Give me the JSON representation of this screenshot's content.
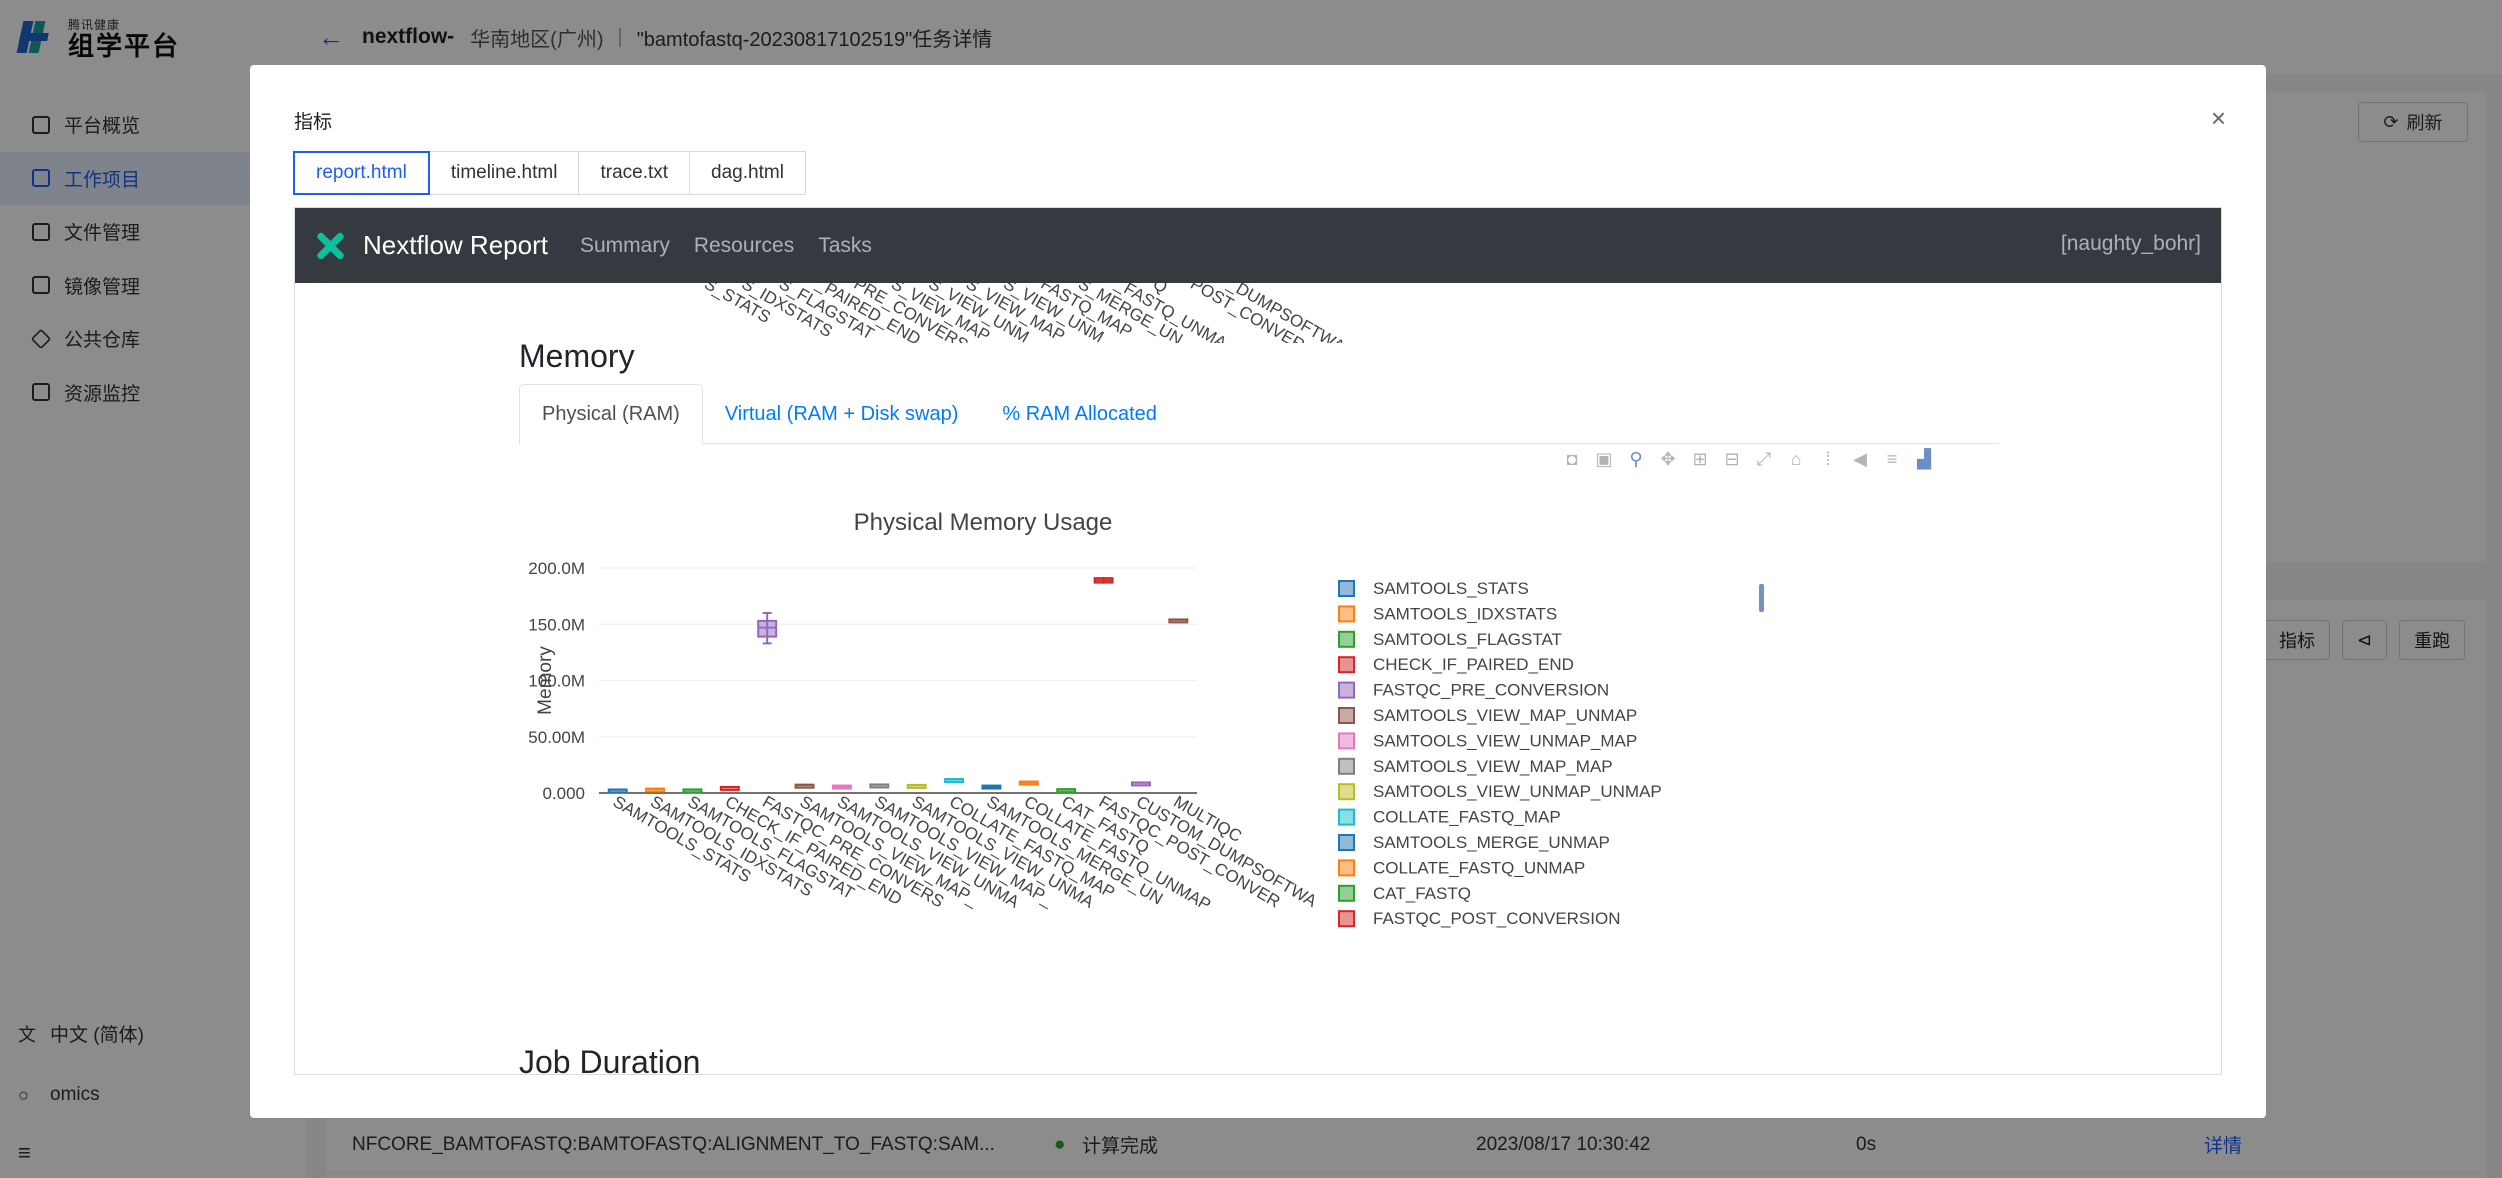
{
  "sidebar": {
    "logo_small": "腾讯健康",
    "logo_big": "组学平台",
    "items": [
      {
        "label": "平台概览",
        "icon": "grid-icon",
        "active": false
      },
      {
        "label": "工作项目",
        "icon": "layers-icon",
        "active": true
      },
      {
        "label": "文件管理",
        "icon": "folder-icon",
        "active": false
      },
      {
        "label": "镜像管理",
        "icon": "image-icon",
        "active": false
      },
      {
        "label": "公共仓库",
        "icon": "cube-icon",
        "active": false
      },
      {
        "label": "资源监控",
        "icon": "chart-icon",
        "active": false
      }
    ],
    "language": "中文 (简体)",
    "user": "omics"
  },
  "topbar": {
    "workflow_name": "nextflow-",
    "region": "华南地区(广州)",
    "separator": "|",
    "task": "\"bamtofastq-20230817102519\"任务详情"
  },
  "background": {
    "refresh_label": "刷新",
    "btn_metrics": "指标",
    "btn_rerun": "重跑",
    "row": {
      "name": "NFCORE_BAMTOFASTQ:BAMTOFASTQ:ALIGNMENT_TO_FASTQ:SAM...",
      "status": "计算完成",
      "time": "2023/08/17 10:30:42",
      "duration": "0s",
      "action": "详情"
    }
  },
  "modal": {
    "title": "指标",
    "close": "×",
    "tabs": [
      "report.html",
      "timeline.html",
      "trace.txt",
      "dag.html"
    ],
    "active_tab": 0
  },
  "report": {
    "brand": "Nextflow Report",
    "nav": [
      "Summary",
      "Resources",
      "Tasks"
    ],
    "run_name": "[naughty_bohr]",
    "section_memory": "Memory",
    "section_next": "Job Duration",
    "subtabs": [
      "Physical (RAM)",
      "Virtual (RAM + Disk swap)",
      "% RAM Allocated"
    ],
    "active_subtab": 0,
    "modebar": [
      "camera-icon",
      "save-icon",
      "zoom-icon",
      "pan-icon",
      "zoom-in-icon",
      "zoom-out-icon",
      "autoscale-icon",
      "reset-icon",
      "spike-icon",
      "hover-closest-icon",
      "hover-compare-icon",
      "plotly-logo-icon"
    ]
  },
  "chart_data": {
    "type": "box",
    "title": "Physical Memory Usage",
    "ylabel": "Memory",
    "xlabel": "",
    "ylim": [
      0,
      200000000
    ],
    "yticks": [
      "0.000",
      "50.00M",
      "100.0M",
      "150.0M",
      "200.0M"
    ],
    "ytick_values": [
      0,
      50000000,
      100000000,
      150000000,
      200000000
    ],
    "legend_position": "right",
    "grid": true,
    "categories": [
      "SAMTOOLS_STATS",
      "SAMTOOLS_IDXSTATS",
      "SAMTOOLS_FLAGSTAT",
      "CHECK_IF_PAIRED_END",
      "FASTQC_PRE_CONVERSION",
      "SAMTOOLS_VIEW_MAP_UNMAP",
      "SAMTOOLS_VIEW_UNMAP_MAP",
      "SAMTOOLS_VIEW_MAP_MAP",
      "SAMTOOLS_VIEW_UNMAP_UNMAP",
      "COLLATE_FASTQ_MAP",
      "SAMTOOLS_MERGE_UNMAP",
      "COLLATE_FASTQ_UNMAP",
      "CAT_FASTQ",
      "FASTQC_POST_CONVERSION",
      "CUSTOM_DUMPSOFTWAREVERSIONS",
      "MULTIQC"
    ],
    "tick_labels": [
      "SAMTOOLS_STATS",
      "SAMTOOLS_IDXSTATS",
      "SAMTOOLS_FLAGSTAT",
      "CHECK_IF_PAIRED_END",
      "FASTQC_PRE_CONVERS",
      "SAMTOOLS_VIEW_MAP_",
      "SAMTOOLS_VIEW_UNMA",
      "SAMTOOLS_VIEW_MAP_",
      "SAMTOOLS_VIEW_UNMA",
      "COLLATE_FASTQ_MAP",
      "SAMTOOLS_MERGE_UN",
      "COLLATE_FASTQ_UNMAP",
      "CAT_FASTQ",
      "FASTQC_POST_CONVER",
      "CUSTOM_DUMPSOFTWA",
      "MULTIQC"
    ],
    "colors": [
      "#1f77b4",
      "#ff7f0e",
      "#2ca02c",
      "#d62728",
      "#9467bd",
      "#8c564b",
      "#e377c2",
      "#7f7f7f",
      "#bcbd22",
      "#17becf",
      "#1f77b4",
      "#ff7f0e",
      "#2ca02c",
      "#d62728",
      "#9467bd",
      "#8c564b"
    ],
    "series": [
      {
        "name": "SAMTOOLS_STATS",
        "min": 2800000,
        "q1": 2900000,
        "median": 3000000,
        "q3": 3100000,
        "max": 3200000
      },
      {
        "name": "SAMTOOLS_IDXSTATS",
        "min": 3300000,
        "q1": 3500000,
        "median": 3700000,
        "q3": 3900000,
        "max": 4100000
      },
      {
        "name": "SAMTOOLS_FLAGSTAT",
        "min": 2600000,
        "q1": 2800000,
        "median": 3000000,
        "q3": 3200000,
        "max": 3400000
      },
      {
        "name": "CHECK_IF_PAIRED_END",
        "min": 4800000,
        "q1": 5000000,
        "median": 5200000,
        "q3": 5400000,
        "max": 5600000
      },
      {
        "name": "FASTQC_PRE_CONVERSION",
        "min": 133000000,
        "q1": 139000000,
        "median": 147000000,
        "q3": 153000000,
        "max": 160000000
      },
      {
        "name": "SAMTOOLS_VIEW_MAP_UNMAP",
        "min": 6800000,
        "q1": 7000000,
        "median": 7200000,
        "q3": 7400000,
        "max": 7600000
      },
      {
        "name": "SAMTOOLS_VIEW_UNMAP_MAP",
        "min": 4000000,
        "q1": 4600000,
        "median": 5600000,
        "q3": 6600000,
        "max": 7200000
      },
      {
        "name": "SAMTOOLS_VIEW_MAP_MAP",
        "min": 7000000,
        "q1": 7200000,
        "median": 7400000,
        "q3": 7600000,
        "max": 7800000
      },
      {
        "name": "SAMTOOLS_VIEW_UNMAP_UNMAP",
        "min": 6600000,
        "q1": 6800000,
        "median": 7000000,
        "q3": 7200000,
        "max": 7400000
      },
      {
        "name": "COLLATE_FASTQ_MAP",
        "min": 11800000,
        "q1": 12000000,
        "median": 12200000,
        "q3": 12400000,
        "max": 12600000
      },
      {
        "name": "SAMTOOLS_MERGE_UNMAP",
        "min": 3800000,
        "q1": 4400000,
        "median": 5400000,
        "q3": 6600000,
        "max": 7200000
      },
      {
        "name": "COLLATE_FASTQ_UNMAP",
        "min": 8400000,
        "q1": 8900000,
        "median": 9500000,
        "q3": 10200000,
        "max": 10600000
      },
      {
        "name": "CAT_FASTQ",
        "min": 2800000,
        "q1": 3000000,
        "median": 3200000,
        "q3": 3400000,
        "max": 3600000
      },
      {
        "name": "FASTQC_POST_CONVERSION",
        "min": 186000000,
        "q1": 187000000,
        "median": 189000000,
        "q3": 191000000,
        "max": 192000000
      },
      {
        "name": "CUSTOM_DUMPSOFTWAREVERSIONS",
        "min": 8800000,
        "q1": 9000000,
        "median": 9200000,
        "q3": 9400000,
        "max": 9600000
      },
      {
        "name": "MULTIQC",
        "min": 153500000,
        "q1": 153700000,
        "median": 154000000,
        "q3": 154300000,
        "max": 154500000
      }
    ],
    "legend_entries": [
      "SAMTOOLS_STATS",
      "SAMTOOLS_IDXSTATS",
      "SAMTOOLS_FLAGSTAT",
      "CHECK_IF_PAIRED_END",
      "FASTQC_PRE_CONVERSION",
      "SAMTOOLS_VIEW_MAP_UNMAP",
      "SAMTOOLS_VIEW_UNMAP_MAP",
      "SAMTOOLS_VIEW_MAP_MAP",
      "SAMTOOLS_VIEW_UNMAP_UNMAP",
      "COLLATE_FASTQ_MAP",
      "SAMTOOLS_MERGE_UNMAP",
      "COLLATE_FASTQ_UNMAP",
      "CAT_FASTQ",
      "FASTQC_POST_CONVERSION"
    ]
  },
  "prev_chart_tick_labels": [
    "S_STATS",
    "S_IDXSTATS",
    "S_FLAGSTAT",
    "_PAIRED_END",
    "PRE_CONVERS",
    "S_VIEW_MAP_",
    "S_VIEW_UNM",
    "S_VIEW_MAP_",
    "S_VIEW_UNM",
    "FASTQ_MAP",
    "S_MERGE_UN",
    "_FASTQ_UNMA",
    "Q",
    "POST_CONVER",
    "_DUMPSOFTWA"
  ]
}
